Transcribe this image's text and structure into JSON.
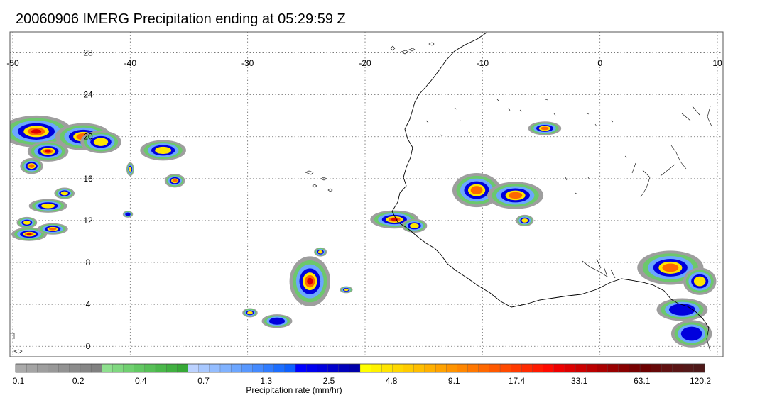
{
  "title": "20060906 IMERG Precipitation ending at 05:29:59 Z",
  "map": {
    "lon_range": [
      -50,
      10
    ],
    "lat_range": [
      -1,
      30
    ],
    "lon_ticks": [
      "-50",
      "-40",
      "-30",
      "-20",
      "-10",
      "0",
      "10"
    ],
    "lat_ticks": [
      "0",
      "4",
      "8",
      "12",
      "16",
      "20",
      "24",
      "28"
    ],
    "grid": "dotted",
    "coastline_color": "#000000",
    "precip_cells": [
      {
        "lon": -48.0,
        "lat": 20.5,
        "rx": 2.8,
        "ry": 1.4,
        "level": 4
      },
      {
        "lon": -44.0,
        "lat": 20.0,
        "rx": 2.2,
        "ry": 1.2,
        "level": 3
      },
      {
        "lon": -47.0,
        "lat": 18.6,
        "rx": 1.6,
        "ry": 0.9,
        "level": 4
      },
      {
        "lon": -42.5,
        "lat": 19.5,
        "rx": 1.6,
        "ry": 1.0,
        "level": 2
      },
      {
        "lon": -48.4,
        "lat": 17.2,
        "rx": 0.9,
        "ry": 0.7,
        "level": 3
      },
      {
        "lon": -45.6,
        "lat": 14.6,
        "rx": 0.8,
        "ry": 0.5,
        "level": 2
      },
      {
        "lon": -47.0,
        "lat": 13.4,
        "rx": 1.5,
        "ry": 0.6,
        "level": 2
      },
      {
        "lon": -48.8,
        "lat": 11.8,
        "rx": 0.8,
        "ry": 0.5,
        "level": 2
      },
      {
        "lon": -48.6,
        "lat": 10.7,
        "rx": 1.4,
        "ry": 0.6,
        "level": 4
      },
      {
        "lon": -46.6,
        "lat": 11.2,
        "rx": 1.2,
        "ry": 0.5,
        "level": 3
      },
      {
        "lon": -37.2,
        "lat": 18.7,
        "rx": 1.8,
        "ry": 0.9,
        "level": 2
      },
      {
        "lon": -36.2,
        "lat": 15.8,
        "rx": 0.8,
        "ry": 0.6,
        "level": 3
      },
      {
        "lon": -40.0,
        "lat": 16.9,
        "rx": 0.3,
        "ry": 0.6,
        "level": 2
      },
      {
        "lon": -40.2,
        "lat": 12.6,
        "rx": 0.4,
        "ry": 0.3,
        "level": 1
      },
      {
        "lon": -24.7,
        "lat": 6.2,
        "rx": 1.6,
        "ry": 2.2,
        "level": 4
      },
      {
        "lon": -23.8,
        "lat": 9.0,
        "rx": 0.5,
        "ry": 0.4,
        "level": 2
      },
      {
        "lon": -21.6,
        "lat": 5.4,
        "rx": 0.5,
        "ry": 0.3,
        "level": 2
      },
      {
        "lon": -29.8,
        "lat": 3.2,
        "rx": 0.6,
        "ry": 0.4,
        "level": 2
      },
      {
        "lon": -27.5,
        "lat": 2.4,
        "rx": 1.2,
        "ry": 0.6,
        "level": 1
      },
      {
        "lon": -17.5,
        "lat": 12.1,
        "rx": 1.9,
        "ry": 0.8,
        "level": 4
      },
      {
        "lon": -15.8,
        "lat": 11.5,
        "rx": 1.0,
        "ry": 0.6,
        "level": 2
      },
      {
        "lon": -10.5,
        "lat": 14.9,
        "rx": 1.9,
        "ry": 1.5,
        "level": 3
      },
      {
        "lon": -7.2,
        "lat": 14.4,
        "rx": 2.2,
        "ry": 1.2,
        "level": 3
      },
      {
        "lon": -6.4,
        "lat": 12.0,
        "rx": 0.7,
        "ry": 0.5,
        "level": 2
      },
      {
        "lon": -4.7,
        "lat": 20.8,
        "rx": 1.3,
        "ry": 0.6,
        "level": 3
      },
      {
        "lon": 6.0,
        "lat": 7.5,
        "rx": 2.6,
        "ry": 1.5,
        "level": 3
      },
      {
        "lon": 8.5,
        "lat": 6.2,
        "rx": 1.3,
        "ry": 1.2,
        "level": 2
      },
      {
        "lon": 7.0,
        "lat": 3.5,
        "rx": 2.0,
        "ry": 1.0,
        "level": 1
      },
      {
        "lon": 7.8,
        "lat": 1.2,
        "rx": 1.6,
        "ry": 1.2,
        "level": 1
      }
    ]
  },
  "colorbar": {
    "label": "Precipitation rate (mm/hr)",
    "tick_labels": [
      "0.1",
      "0.2",
      "0.4",
      "0.7",
      "1.3",
      "2.5",
      "4.8",
      "9.1",
      "17.4",
      "33.1",
      "63.1",
      "120.2"
    ],
    "colors": [
      "#aaaaaa",
      "#a4a4a4",
      "#9e9e9e",
      "#989898",
      "#929292",
      "#8c8c8c",
      "#868686",
      "#808080",
      "#8ee08e",
      "#7fd87f",
      "#70d070",
      "#62c862",
      "#56c056",
      "#4ab84a",
      "#40b040",
      "#36a836",
      "#bcd2ff",
      "#a8c8ff",
      "#94bdff",
      "#80b2ff",
      "#6ca6ff",
      "#5898ff",
      "#448aff",
      "#307cff",
      "#1c6eff",
      "#0e60ff",
      "#0000ff",
      "#0000ee",
      "#0000dd",
      "#0000cc",
      "#0000bb",
      "#0000aa",
      "#ffff00",
      "#fff200",
      "#ffe500",
      "#ffd800",
      "#ffcb00",
      "#ffbe00",
      "#ffb000",
      "#ffa200",
      "#ff9400",
      "#ff8600",
      "#ff7700",
      "#ff6800",
      "#ff5900",
      "#ff4a00",
      "#ff3a00",
      "#ff2a00",
      "#ff1a00",
      "#ff0a00",
      "#ee0000",
      "#dd0000",
      "#cc0000",
      "#bb0000",
      "#aa0000",
      "#990000",
      "#880000",
      "#770000",
      "#6c0000",
      "#660808",
      "#601010",
      "#5a1414",
      "#541818",
      "#4e1818"
    ]
  }
}
